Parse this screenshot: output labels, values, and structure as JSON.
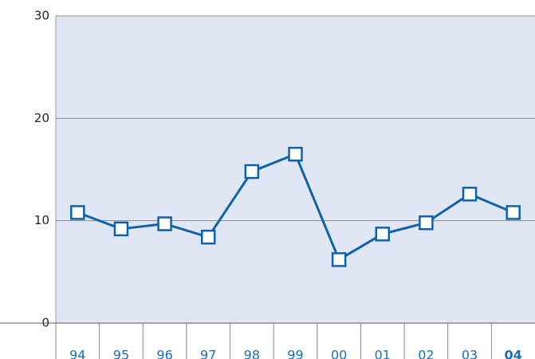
{
  "chart_data": {
    "type": "line",
    "categories": [
      "94",
      "95",
      "96",
      "97",
      "98",
      "99",
      "00",
      "01",
      "02",
      "03",
      "04"
    ],
    "values": [
      10.8,
      9.2,
      9.7,
      8.4,
      14.8,
      16.5,
      6.2,
      8.7,
      9.8,
      12.6,
      10.8
    ],
    "color": "#0d62ad",
    "ylim": [
      0,
      30
    ],
    "yticks": [
      0,
      10,
      20,
      30
    ],
    "grid": true,
    "highlight_index": 10
  }
}
